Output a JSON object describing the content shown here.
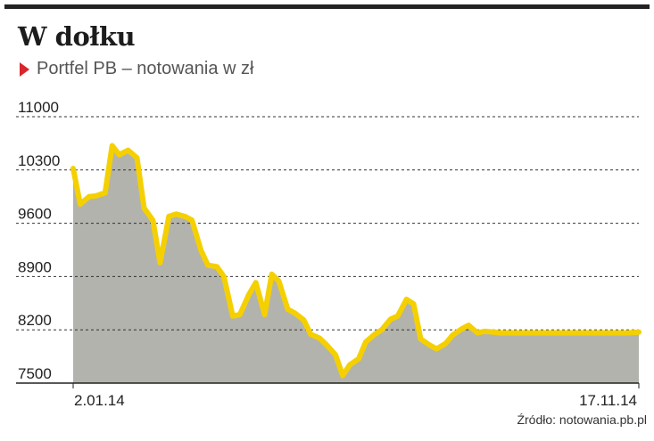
{
  "header": {
    "title": "W dołku",
    "subtitle": "Portfel PB – notowania w zł"
  },
  "colors": {
    "line": "#f5d000",
    "area": "#b3b3ad",
    "grid": "#333333",
    "accent": "#d8262b"
  },
  "source": "Źródło: notowania.pb.pl",
  "chart_data": {
    "type": "area",
    "title": "W dołku",
    "subtitle": "Portfel PB – notowania w zł",
    "xlabel": "",
    "ylabel": "",
    "ylim": [
      7500,
      11000
    ],
    "yticks": [
      11000,
      10300,
      9600,
      8900,
      8200,
      7500
    ],
    "ytick_labels": [
      "11000",
      "10300",
      "9600",
      "8900",
      "8200",
      "7500"
    ],
    "xtick_labels": [
      "2.01.14",
      "17.11.14"
    ],
    "x_range": [
      "2014-01-02",
      "2014-11-17"
    ],
    "grid": true,
    "grid_style": "dashed horizontal",
    "series": [
      {
        "x": [
          "2014-01-02",
          "2014-01-06",
          "2014-01-11",
          "2014-01-15",
          "2014-01-20",
          "2014-01-24",
          "2014-01-28",
          "2014-02-02",
          "2014-02-07",
          "2014-02-11",
          "2014-02-16",
          "2014-02-20",
          "2014-02-25",
          "2014-03-01",
          "2014-03-06",
          "2014-03-10",
          "2014-03-15",
          "2014-03-19",
          "2014-03-24",
          "2014-03-28",
          "2014-04-02",
          "2014-04-06",
          "2014-04-11",
          "2014-04-15",
          "2014-04-20",
          "2014-04-24",
          "2014-04-28",
          "2014-05-03",
          "2014-05-07",
          "2014-05-12",
          "2014-05-16",
          "2014-05-21",
          "2014-05-25",
          "2014-05-30",
          "2014-06-03",
          "2014-06-07",
          "2014-06-12",
          "2014-06-16",
          "2014-06-21",
          "2014-06-25",
          "2014-06-30",
          "2014-07-04",
          "2014-07-09",
          "2014-07-13",
          "2014-07-17",
          "2014-07-22",
          "2014-07-26",
          "2014-07-31",
          "2014-08-04",
          "2014-08-09",
          "2014-08-13",
          "2014-08-18",
          "2014-08-22",
          "2014-08-27",
          "2014-08-31",
          "2014-09-04",
          "2014-09-09",
          "2014-09-13",
          "2014-09-18",
          "2014-09-22",
          "2014-09-27",
          "2014-10-01",
          "2014-10-06",
          "2014-10-10",
          "2014-10-14",
          "2014-10-19",
          "2014-10-23",
          "2014-10-28",
          "2014-11-01",
          "2014-11-06",
          "2014-11-10",
          "2014-11-17"
        ],
        "values": [
          10320,
          9850,
          9950,
          9960,
          10000,
          10620,
          10500,
          10560,
          10460,
          9800,
          9640,
          9080,
          9690,
          9720,
          9690,
          9640,
          9250,
          9050,
          9030,
          8900,
          8380,
          8400,
          8660,
          8820,
          8400,
          8930,
          8840,
          8470,
          8420,
          8330,
          8140,
          8090,
          8000,
          7870,
          7600,
          7740,
          7820,
          8040,
          8140,
          8200,
          8340,
          8380,
          8600,
          8540,
          8080,
          8000,
          7950,
          8020,
          8130,
          8210,
          8260,
          8160,
          8180,
          8170,
          8160,
          8160,
          8160,
          8160,
          8160,
          8160,
          8160,
          8160,
          8160,
          8160,
          8160,
          8160,
          8160,
          8160,
          8160,
          8160,
          8160,
          8170
        ]
      }
    ]
  }
}
